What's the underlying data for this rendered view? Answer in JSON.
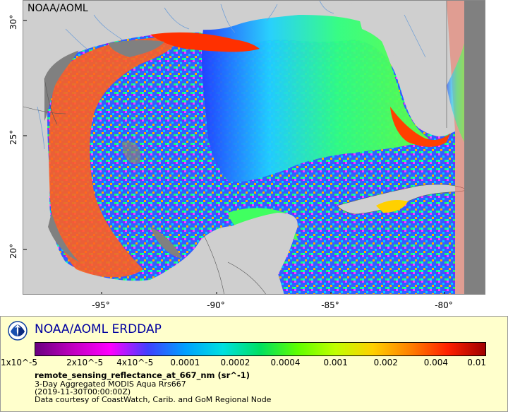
{
  "map": {
    "credit": "NOAA/AOML",
    "lat_ticks": [
      "30°",
      "25°",
      "20°"
    ],
    "lon_ticks": [
      "-95°",
      "-90°",
      "-85°",
      "-80°"
    ],
    "colors": {
      "land": "#cfcfcf",
      "nodata": "#808080",
      "border": "#555555",
      "river": "#6f9fd8"
    }
  },
  "legend": {
    "brand": "NOAA/AOML ERDDAP",
    "colorbar_ticks": [
      "1x10^-5",
      "2x10^-5",
      "4x10^-5",
      "0.0001",
      "0.0002",
      "0.0004",
      "0.001",
      "0.002",
      "0.004",
      "0.01"
    ],
    "variable": "remote_sensing_reflectance_at_667_nm (sr^-1)",
    "dataset": "3-Day Aggregated MODIS Aqua Rrs667",
    "time": "(2019-11-30T00:00:00Z)",
    "source": "Data courtesy of CoastWatch, Carib. and GoM Regional Node",
    "colormap": [
      "#6a0080",
      "#c000c0",
      "#ff00ff",
      "#4040ff",
      "#00a0ff",
      "#00e0e0",
      "#00e060",
      "#60ff00",
      "#c0ff00",
      "#ffd000",
      "#ff8000",
      "#ff2000",
      "#a00000"
    ]
  }
}
